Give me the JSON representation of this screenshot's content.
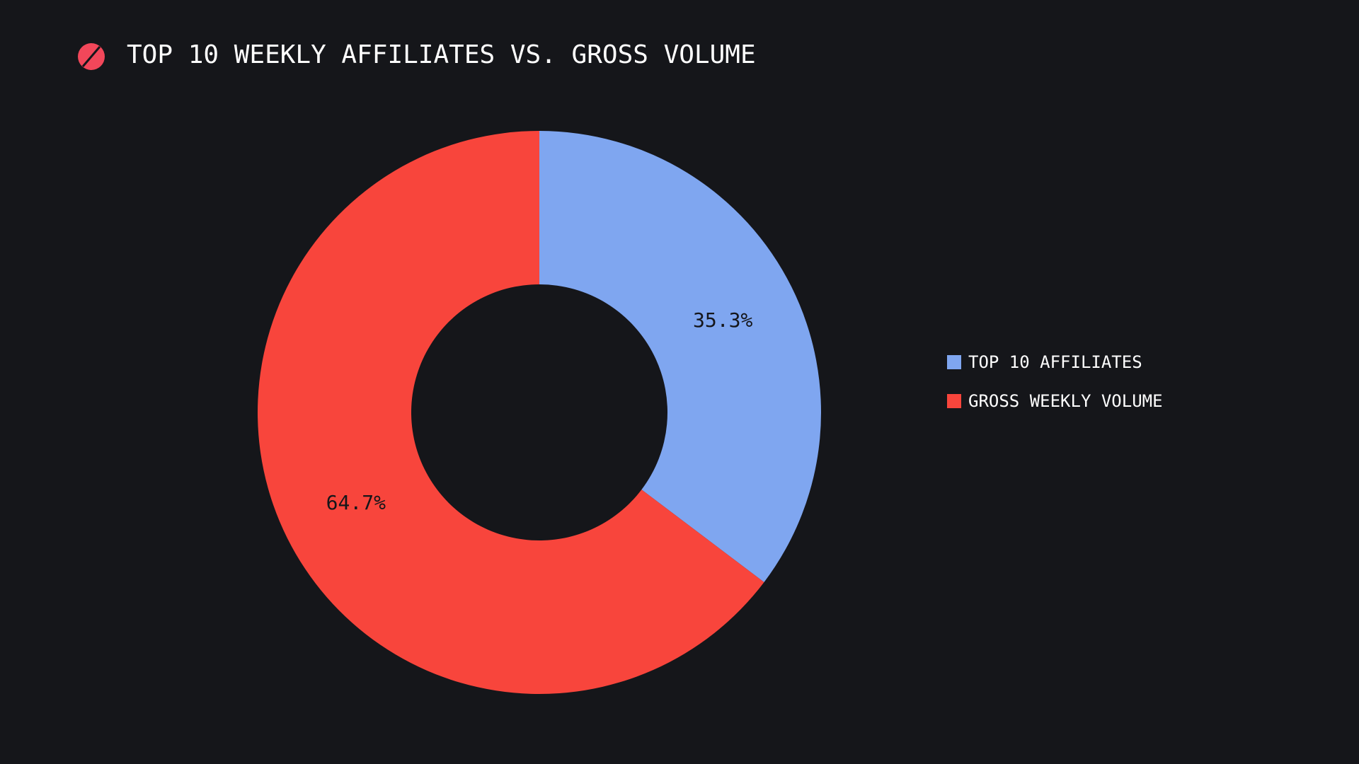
{
  "chart_data": {
    "type": "pie",
    "title": "TOP 10 WEEKLY AFFILIATES VS. GROSS VOLUME",
    "categories": [
      "TOP 10 AFFILIATES",
      "GROSS WEEKLY VOLUME"
    ],
    "values": [
      35.3,
      64.7
    ],
    "value_labels": [
      "35.3%",
      "64.7%"
    ],
    "colors": [
      "#7fa6f0",
      "#f8453c"
    ]
  }
}
